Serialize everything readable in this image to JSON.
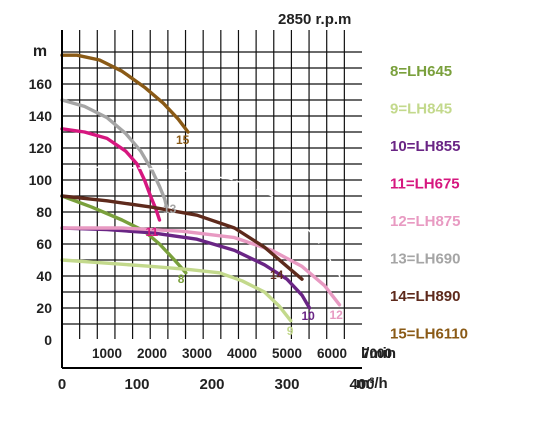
{
  "chart_data": {
    "type": "line",
    "title": "2850 r.p.m",
    "ylabel": "m",
    "xlabel_top": "l/min",
    "xlabel_bottom": "m³/h",
    "xlim": [
      0,
      400
    ],
    "ylim": [
      0,
      180
    ],
    "yticks": [
      "0",
      "20",
      "40",
      "60",
      "80",
      "100",
      "120",
      "140",
      "160"
    ],
    "xticks_top": [
      "1000",
      "2000",
      "3000",
      "4000",
      "5000",
      "6000",
      "7000"
    ],
    "xticks_bottom": [
      "0",
      "100",
      "200",
      "300",
      "400"
    ],
    "grid": true,
    "legend_position": "right",
    "series": [
      {
        "name": "8=LH645",
        "label": "8",
        "color": "#7aa03c",
        "x": [
          0,
          40,
          80,
          110,
          130,
          150,
          165
        ],
        "y": [
          90,
          83,
          75,
          68,
          60,
          50,
          42
        ]
      },
      {
        "name": "9=LH845",
        "label": "9",
        "color": "#c3d98c",
        "x": [
          0,
          60,
          120,
          170,
          210,
          240,
          270,
          290,
          305
        ],
        "y": [
          50,
          48,
          46,
          44,
          42,
          37,
          30,
          21,
          12
        ]
      },
      {
        "name": "10=LH855",
        "label": "10",
        "color": "#6a2585",
        "x": [
          0,
          60,
          120,
          180,
          230,
          270,
          300,
          320,
          330
        ],
        "y": [
          70,
          69,
          67,
          63,
          56,
          47,
          38,
          28,
          20
        ]
      },
      {
        "name": "11=LH675",
        "label": "11",
        "color": "#d6177f",
        "x": [
          0,
          30,
          60,
          85,
          100,
          110,
          118,
          125,
          130
        ],
        "y": [
          132,
          130,
          126,
          118,
          110,
          100,
          90,
          82,
          75
        ]
      },
      {
        "name": "12=LH875",
        "label": "12",
        "color": "#e89ac2",
        "x": [
          0,
          80,
          160,
          230,
          280,
          320,
          350,
          370
        ],
        "y": [
          70,
          70,
          68,
          64,
          56,
          46,
          34,
          22
        ]
      },
      {
        "name": "13=LH690",
        "label": "13",
        "color": "#a5a5a5",
        "x": [
          0,
          30,
          60,
          85,
          105,
          120,
          130,
          137,
          140
        ],
        "y": [
          150,
          146,
          139,
          129,
          118,
          106,
          96,
          88,
          82
        ]
      },
      {
        "name": "14=LH890",
        "label": "14",
        "color": "#5e2a1c",
        "x": [
          0,
          60,
          120,
          180,
          230,
          270,
          300,
          320
        ],
        "y": [
          90,
          87,
          83,
          78,
          70,
          58,
          46,
          38
        ]
      },
      {
        "name": "15=LH6110",
        "label": "15",
        "color": "#8a5a16",
        "x": [
          0,
          20,
          50,
          80,
          110,
          135,
          155,
          168
        ],
        "y": [
          178,
          178,
          175,
          168,
          158,
          148,
          138,
          130
        ]
      },
      {
        "name": "",
        "label": "",
        "color": "#ffffff",
        "dashed": true,
        "x": [
          0,
          80,
          160,
          230,
          280,
          320,
          350,
          375
        ],
        "y": [
          108,
          108,
          106,
          100,
          90,
          74,
          56,
          36
        ]
      }
    ]
  }
}
